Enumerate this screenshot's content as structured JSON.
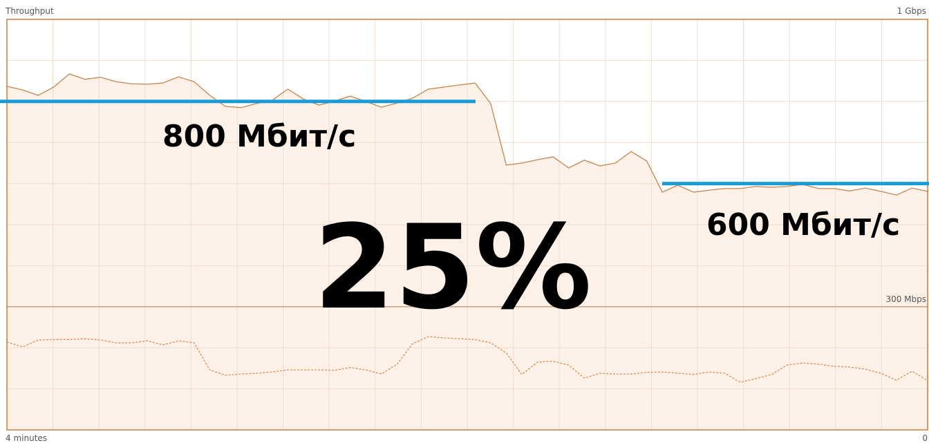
{
  "chart_data": {
    "type": "line",
    "title": "Throughput",
    "xlim": [
      240,
      0
    ],
    "xticks": [
      {
        "value": 240,
        "label": "4 minutes"
      },
      {
        "value": 0,
        "label": "0"
      }
    ],
    "xgrid": [
      240,
      228,
      216,
      204,
      192,
      180,
      168,
      156,
      144,
      132,
      120,
      108,
      96,
      84,
      72,
      60,
      48,
      36,
      24,
      12,
      0
    ],
    "ylim": [
      0,
      1000
    ],
    "yticks": [
      0,
      100,
      200,
      300,
      400,
      500,
      600,
      700,
      800,
      900,
      1000
    ],
    "ylabels": [
      {
        "value": 1000,
        "label": "1 Gbps"
      },
      {
        "value": 300,
        "label": "300 Mbps"
      }
    ],
    "grid": true,
    "series": [
      {
        "color": "#c8844a",
        "dash": false,
        "values": [
          837,
          828,
          815,
          835,
          867,
          854,
          859,
          848,
          843,
          842,
          845,
          860,
          848,
          815,
          788,
          785,
          795,
          803,
          830,
          806,
          791,
          801,
          813,
          800,
          786,
          796,
          808,
          830,
          835,
          840,
          845,
          795,
          645,
          650,
          658,
          665,
          638,
          657,
          643,
          650,
          678,
          655,
          579,
          596,
          579,
          584,
          588,
          588,
          593,
          591,
          593,
          598,
          588,
          588,
          582,
          589,
          581,
          572,
          589,
          581
        ]
      },
      {
        "color": "#d9905a",
        "dash": true,
        "values": [
          214,
          202,
          219,
          220,
          220,
          222,
          219,
          212,
          212,
          217,
          207,
          217,
          212,
          146,
          133,
          136,
          138,
          141,
          146,
          146,
          146,
          145,
          152,
          146,
          136,
          160,
          210,
          227,
          224,
          222,
          220,
          212,
          187,
          135,
          165,
          167,
          158,
          126,
          138,
          136,
          136,
          140,
          141,
          138,
          135,
          141,
          138,
          116,
          125,
          135,
          158,
          163,
          160,
          155,
          153,
          148,
          138,
          121,
          143,
          120
        ]
      }
    ],
    "reference_lines": [
      {
        "value": 800,
        "label": "800 Мбит/с",
        "color": "#1a9bd7"
      },
      {
        "value": 600,
        "label": "600 Мбит/с",
        "color": "#1a9bd7"
      }
    ],
    "annotation": "25%"
  }
}
